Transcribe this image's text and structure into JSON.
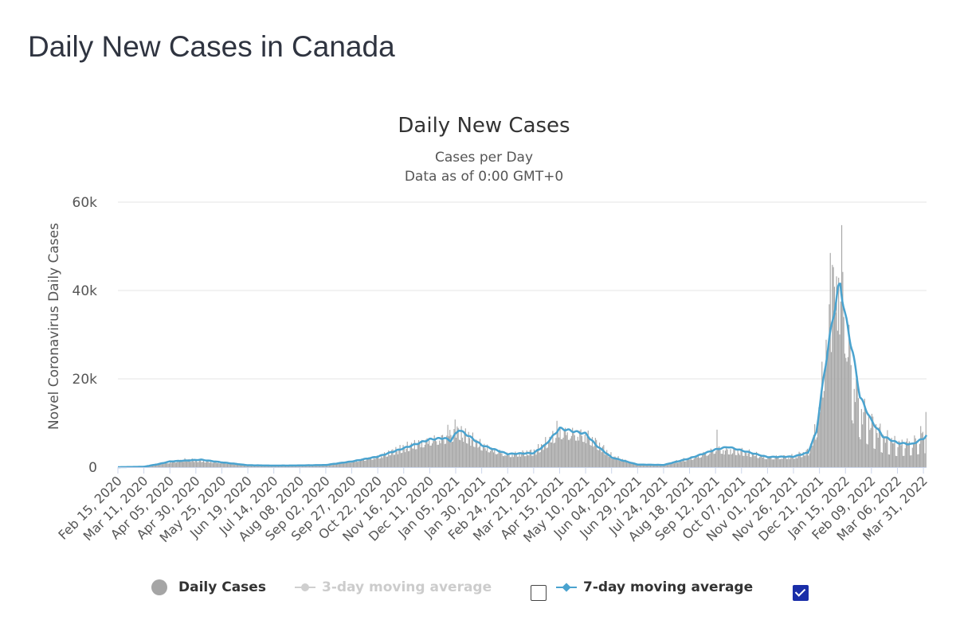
{
  "page": {
    "title": "Daily New Cases in Canada"
  },
  "chart_data": {
    "type": "bar",
    "title": "Daily New Cases",
    "subtitle": [
      "Cases per Day",
      "Data as of 0:00 GMT+0"
    ],
    "ylabel": "Novel Coronavirus Daily Cases",
    "xlabel": "",
    "x_start": "2020-02-15",
    "x_end": "2022-04-03",
    "ylim": [
      0,
      60000
    ],
    "y_ticks": [
      0,
      20000,
      40000,
      60000
    ],
    "y_tick_labels": [
      "0",
      "20k",
      "40k",
      "60k"
    ],
    "x_tick_labels": [
      "Feb 15, 2020",
      "Mar 11, 2020",
      "Apr 05, 2020",
      "Apr 30, 2020",
      "May 25, 2020",
      "Jun 19, 2020",
      "Jul 14, 2020",
      "Aug 08, 2020",
      "Sep 02, 2020",
      "Sep 27, 2020",
      "Oct 22, 2020",
      "Nov 16, 2020",
      "Dec 11, 2020",
      "Jan 05, 2021",
      "Jan 30, 2021",
      "Feb 24, 2021",
      "Mar 21, 2021",
      "Apr 15, 2021",
      "May 10, 2021",
      "Jun 04, 2021",
      "Jun 29, 2021",
      "Jul 24, 2021",
      "Aug 18, 2021",
      "Sep 12, 2021",
      "Oct 07, 2021",
      "Nov 01, 2021",
      "Nov 26, 2021",
      "Dec 21, 2021",
      "Jan 15, 2022",
      "Feb 09, 2022",
      "Mar 06, 2022",
      "Mar 31, 2022"
    ],
    "grid": true,
    "legend_position": "bottom",
    "series": [
      {
        "name": "Daily Cases",
        "type": "bar",
        "color": "#a5a5a5",
        "anchors": [
          [
            "2020-02-15",
            0
          ],
          [
            "2020-03-11",
            100
          ],
          [
            "2020-03-25",
            800
          ],
          [
            "2020-04-05",
            1200
          ],
          [
            "2020-04-20",
            1700
          ],
          [
            "2020-05-05",
            1500
          ],
          [
            "2020-05-25",
            1100
          ],
          [
            "2020-06-19",
            450
          ],
          [
            "2020-07-14",
            350
          ],
          [
            "2020-08-08",
            400
          ],
          [
            "2020-09-02",
            500
          ],
          [
            "2020-09-27",
            1400
          ],
          [
            "2020-10-22",
            2500
          ],
          [
            "2020-11-16",
            4500
          ],
          [
            "2020-12-11",
            6500
          ],
          [
            "2020-12-25",
            7000
          ],
          [
            "2021-01-08",
            8300
          ],
          [
            "2021-01-30",
            5000
          ],
          [
            "2021-02-24",
            3000
          ],
          [
            "2021-03-21",
            3500
          ],
          [
            "2021-04-01",
            5500
          ],
          [
            "2021-04-15",
            8500
          ],
          [
            "2021-05-01",
            8000
          ],
          [
            "2021-05-10",
            7500
          ],
          [
            "2021-06-04",
            2500
          ],
          [
            "2021-06-29",
            600
          ],
          [
            "2021-07-24",
            600
          ],
          [
            "2021-08-18",
            2000
          ],
          [
            "2021-09-12",
            4200
          ],
          [
            "2021-10-07",
            3500
          ],
          [
            "2021-11-01",
            2300
          ],
          [
            "2021-11-26",
            2500
          ],
          [
            "2021-12-10",
            3500
          ],
          [
            "2021-12-18",
            9000
          ],
          [
            "2021-12-26",
            25000
          ],
          [
            "2022-01-03",
            38000
          ],
          [
            "2022-01-08",
            42000
          ],
          [
            "2022-01-15",
            33000
          ],
          [
            "2022-01-22",
            22000
          ],
          [
            "2022-01-29",
            14000
          ],
          [
            "2022-02-09",
            10000
          ],
          [
            "2022-02-20",
            7000
          ],
          [
            "2022-03-06",
            5500
          ],
          [
            "2022-03-20",
            6000
          ],
          [
            "2022-03-31",
            7000
          ],
          [
            "2022-04-03",
            7000
          ]
        ],
        "spikes": [
          [
            "2021-01-04",
            10800
          ],
          [
            "2020-12-28",
            9600
          ],
          [
            "2021-04-12",
            10500
          ],
          [
            "2021-09-13",
            8500
          ],
          [
            "2021-12-31",
            48500
          ],
          [
            "2022-01-02",
            45800
          ],
          [
            "2022-01-03",
            45300
          ],
          [
            "2022-01-06",
            43200
          ],
          [
            "2022-01-08",
            42900
          ],
          [
            "2022-01-11",
            54800
          ],
          [
            "2022-01-12",
            44200
          ],
          [
            "2022-04-02",
            12500
          ],
          [
            "2022-03-28",
            9300
          ]
        ]
      },
      {
        "name": "3-day moving average",
        "type": "line",
        "color": "#cfcfcf",
        "enabled": false
      },
      {
        "name": "7-day moving average",
        "type": "line",
        "color": "#4aa3cf",
        "enabled": true,
        "anchors": [
          [
            "2020-02-15",
            0
          ],
          [
            "2020-03-11",
            100
          ],
          [
            "2020-03-25",
            700
          ],
          [
            "2020-04-05",
            1300
          ],
          [
            "2020-04-20",
            1500
          ],
          [
            "2020-05-05",
            1700
          ],
          [
            "2020-05-15",
            1400
          ],
          [
            "2020-05-25",
            1100
          ],
          [
            "2020-06-19",
            450
          ],
          [
            "2020-07-14",
            350
          ],
          [
            "2020-08-08",
            400
          ],
          [
            "2020-09-02",
            500
          ],
          [
            "2020-09-27",
            1300
          ],
          [
            "2020-10-22",
            2400
          ],
          [
            "2020-11-16",
            4300
          ],
          [
            "2020-12-11",
            6300
          ],
          [
            "2020-12-25",
            6600
          ],
          [
            "2020-12-31",
            6000
          ],
          [
            "2021-01-08",
            8500
          ],
          [
            "2021-01-18",
            7000
          ],
          [
            "2021-01-30",
            5000
          ],
          [
            "2021-02-24",
            3000
          ],
          [
            "2021-03-21",
            3200
          ],
          [
            "2021-04-01",
            5000
          ],
          [
            "2021-04-15",
            8800
          ],
          [
            "2021-05-01",
            8000
          ],
          [
            "2021-05-10",
            7600
          ],
          [
            "2021-05-20",
            5000
          ],
          [
            "2021-06-04",
            2200
          ],
          [
            "2021-06-29",
            600
          ],
          [
            "2021-07-24",
            500
          ],
          [
            "2021-08-18",
            2000
          ],
          [
            "2021-09-12",
            4000
          ],
          [
            "2021-09-24",
            4600
          ],
          [
            "2021-10-07",
            3800
          ],
          [
            "2021-11-01",
            2300
          ],
          [
            "2021-11-26",
            2400
          ],
          [
            "2021-12-10",
            3300
          ],
          [
            "2021-12-18",
            8000
          ],
          [
            "2021-12-26",
            22000
          ],
          [
            "2022-01-03",
            34000
          ],
          [
            "2022-01-08",
            40000
          ],
          [
            "2022-01-10",
            41500
          ],
          [
            "2022-01-15",
            34000
          ],
          [
            "2022-01-22",
            26000
          ],
          [
            "2022-01-29",
            16000
          ],
          [
            "2022-02-09",
            10500
          ],
          [
            "2022-02-20",
            7000
          ],
          [
            "2022-03-06",
            5500
          ],
          [
            "2022-03-20",
            5200
          ],
          [
            "2022-03-31",
            6500
          ],
          [
            "2022-04-03",
            7200
          ]
        ]
      }
    ]
  },
  "legend": {
    "items": [
      {
        "label": "Daily Cases",
        "enabled": true
      },
      {
        "label": "3-day moving average",
        "enabled": false
      },
      {
        "label": "7-day moving average",
        "enabled": true
      }
    ]
  }
}
